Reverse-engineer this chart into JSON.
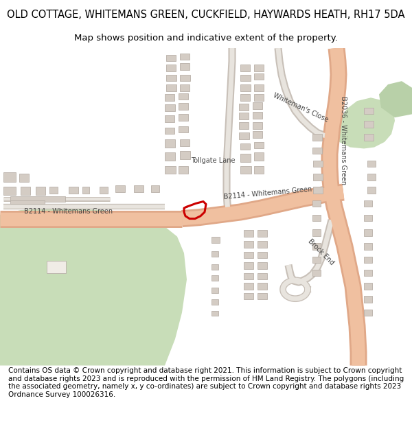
{
  "title": "OLD COTTAGE, WHITEMANS GREEN, CUCKFIELD, HAYWARDS HEATH, RH17 5DA",
  "subtitle": "Map shows position and indicative extent of the property.",
  "footer": "Contains OS data © Crown copyright and database right 2021. This information is subject to Crown copyright and database rights 2023 and is reproduced with the permission of HM Land Registry. The polygons (including the associated geometry, namely x, y co-ordinates) are subject to Crown copyright and database rights 2023 Ordnance Survey 100026316.",
  "bg_color": "#ffffff",
  "map_bg": "#f2ede8",
  "road_color": "#f0c0a0",
  "road_outline": "#e0a888",
  "road_color_b": "#f0c0a0",
  "green_color": "#c8ddb8",
  "green_color2": "#b8d0a8",
  "building_color": "#d4ccc4",
  "building_outline": "#b8b0a8",
  "plot_color": "#cc0000",
  "road_label_color": "#444444",
  "title_fontsize": 10.5,
  "subtitle_fontsize": 9.5,
  "footer_fontsize": 7.5
}
